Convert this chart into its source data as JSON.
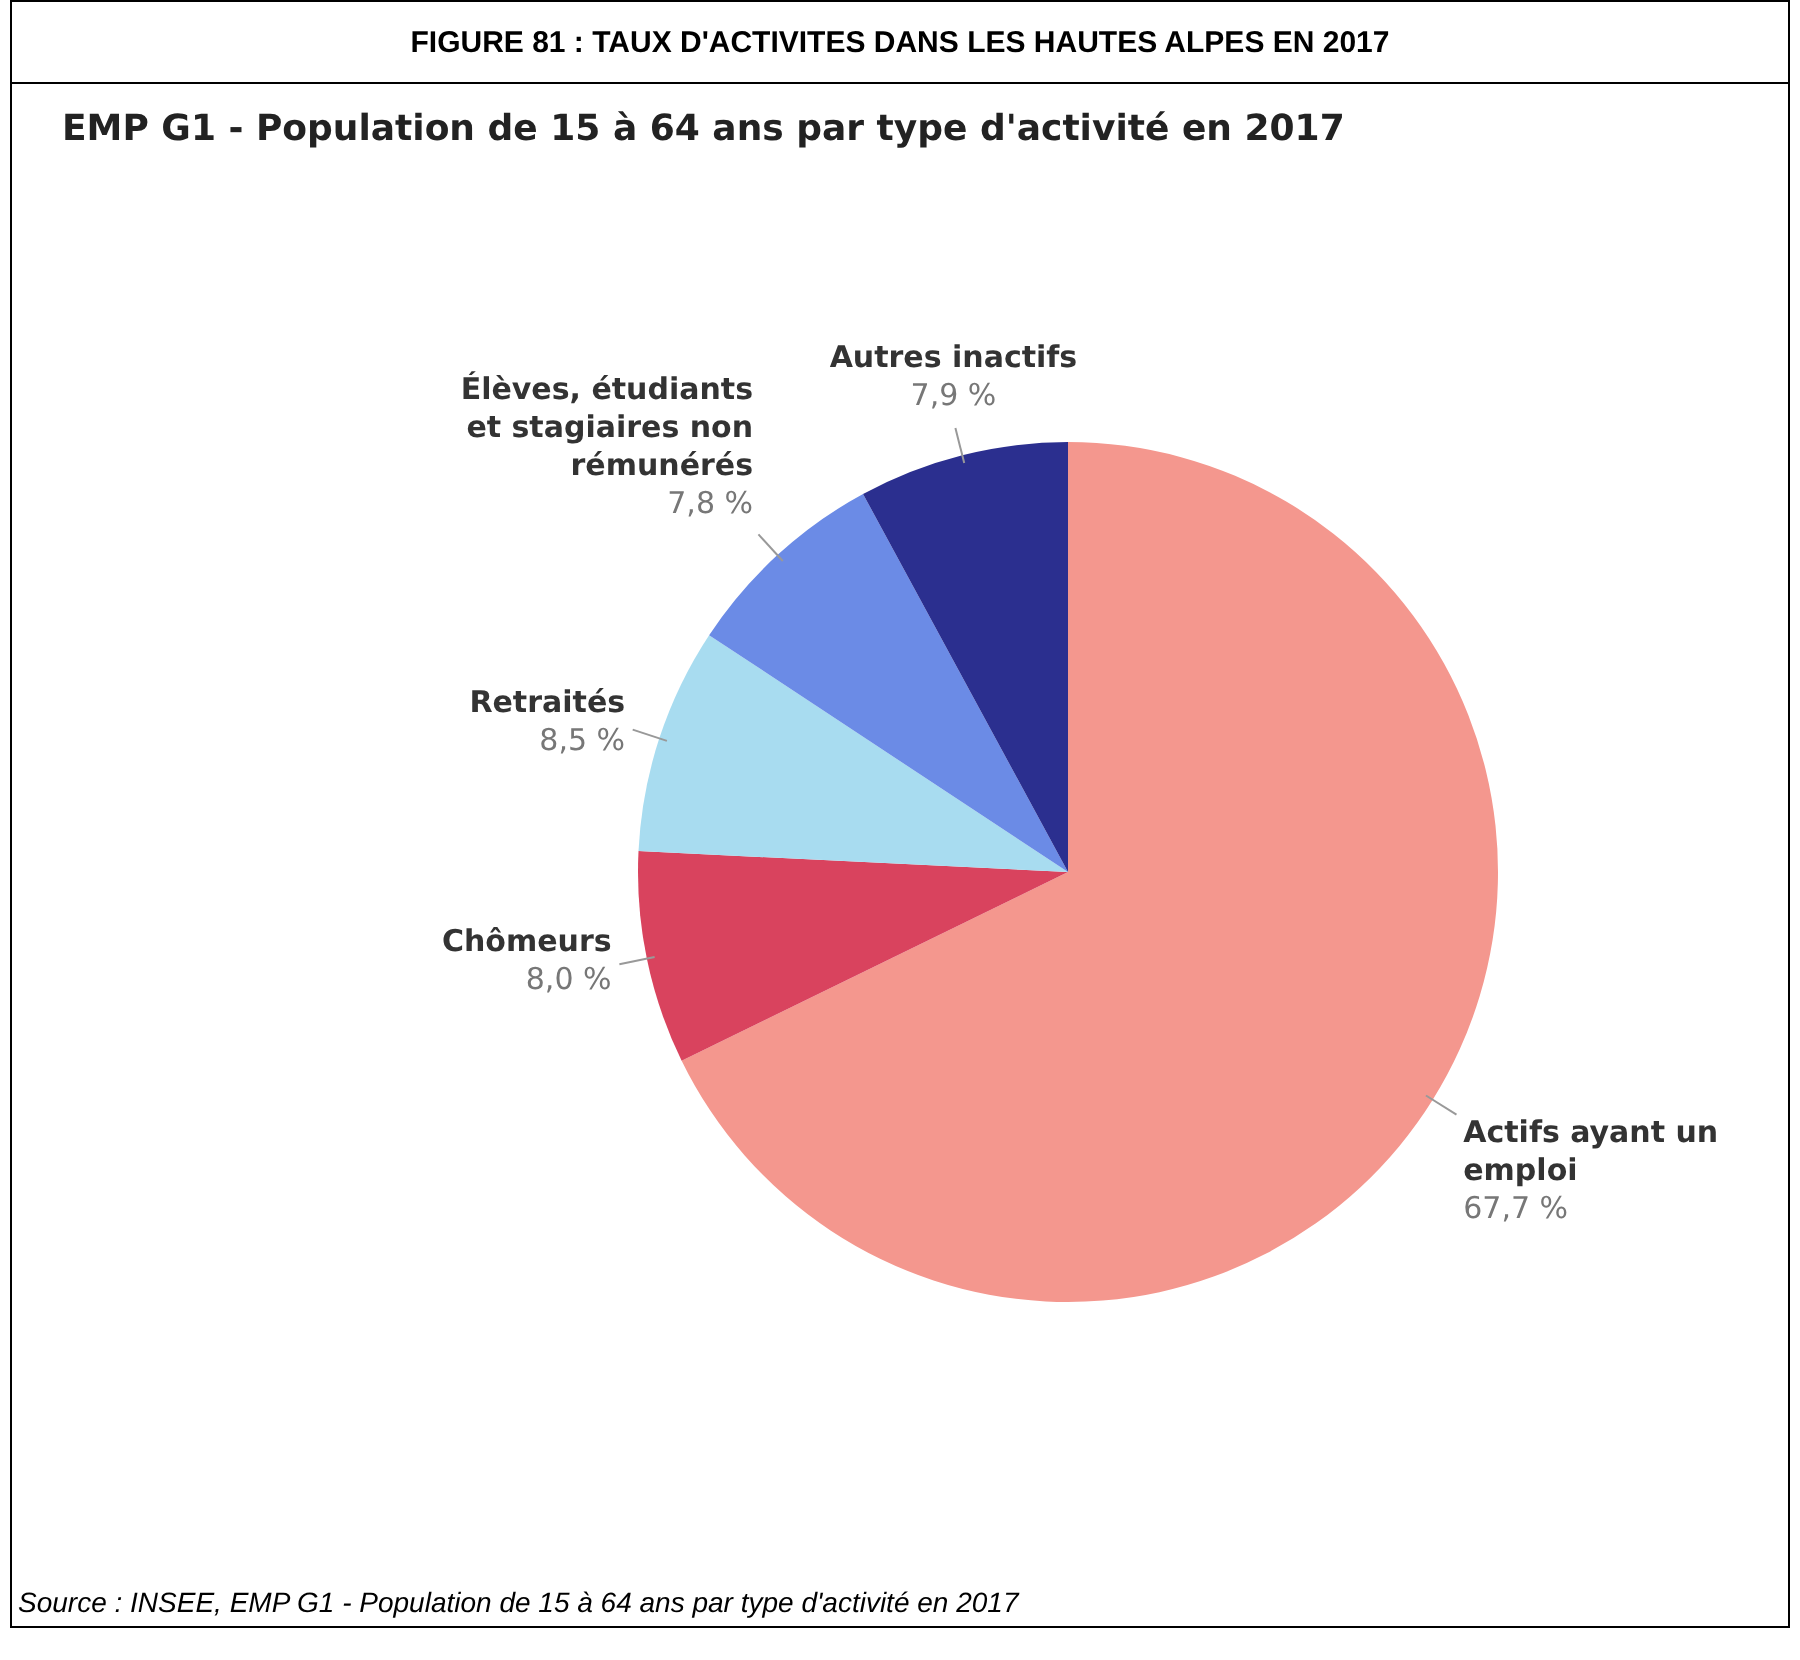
{
  "chart_data": {
    "type": "pie",
    "title": "FIGURE 81 : TAUX D'ACTIVITES DANS LES HAUTES ALPES EN 2017",
    "subtitle": "EMP G1 - Population de 15 à 64 ans par type d'activité en 2017",
    "categories": [
      "Actifs ayant un emploi",
      "Chômeurs",
      "Retraités",
      "Élèves, étudiants et stagiaires non rémunérés",
      "Autres inactifs"
    ],
    "values": [
      67.7,
      8.0,
      8.5,
      7.8,
      7.9
    ],
    "colors": [
      "#f4978e",
      "#d9435e",
      "#a8dcf0",
      "#6b8be6",
      "#2b2f8f"
    ],
    "value_labels": [
      "67,7 %",
      "8,0 %",
      "8,5 %",
      "7,8 %",
      "7,9 %"
    ],
    "annotations": [
      "Source : INSEE, EMP G1 - Population de 15 à 64 ans par type d'activité en 2017"
    ]
  }
}
